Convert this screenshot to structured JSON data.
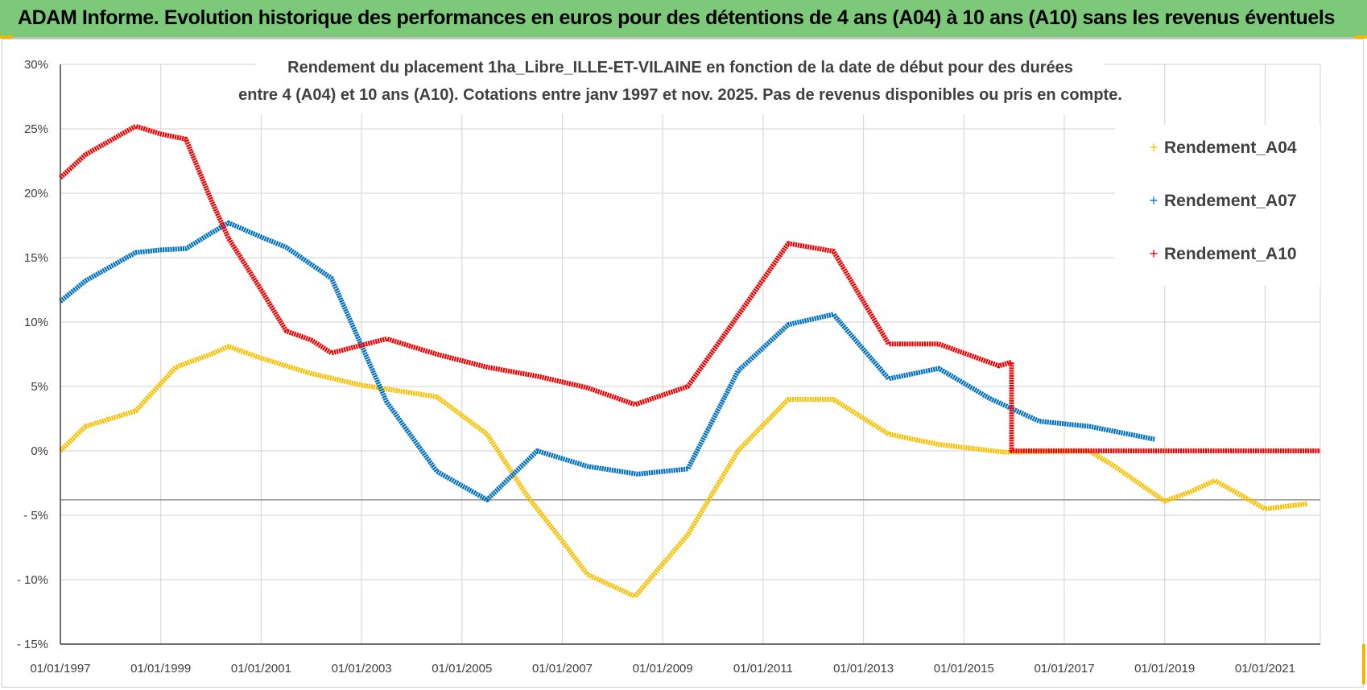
{
  "header": {
    "title": "ADAM Informe. Evolution historique des performances en euros pour des détentions de 4 ans (A04) à 10 ans (A10) sans les revenus éventuels"
  },
  "colors": {
    "banner": "#7dc97a",
    "A04": "#f9c000",
    "A07": "#0070c0",
    "A10": "#ee0000",
    "grid": "#d9d9d9"
  },
  "chart_data": {
    "type": "line",
    "title_lines": [
      "Rendement du placement 1ha_Libre_ILLE-ET-VILAINE en fonction de la date de début pour des durées",
      "entre 4 (A04) et 10 ans (A10). Cotations entre janv 1997 et nov. 2025. Pas de revenus disponibles ou pris en compte."
    ],
    "x_tick_labels": [
      "01/01/1997",
      "01/01/1999",
      "01/01/2001",
      "01/01/2003",
      "01/01/2005",
      "01/01/2007",
      "01/01/2009",
      "01/01/2011",
      "01/01/2013",
      "01/01/2015",
      "01/01/2017",
      "01/01/2019",
      "01/01/2021"
    ],
    "y_tick_labels": [
      "30%",
      "25%",
      "20%",
      "15%",
      "10%",
      "5%",
      "0%",
      "- 5%",
      "- 10%",
      "- 15%"
    ],
    "xlim": [
      1997.0,
      2022.1
    ],
    "ylim": [
      -15,
      30
    ],
    "reference_line": -3.8,
    "xlabel": "",
    "ylabel": "",
    "legend_position": "top-right",
    "series": [
      {
        "name": "Rendement_A04",
        "points": [
          [
            1997.0,
            0.0
          ],
          [
            1997.5,
            1.9
          ],
          [
            1998.5,
            3.1
          ],
          [
            1999.3,
            6.5
          ],
          [
            2000.0,
            7.5
          ],
          [
            2000.35,
            8.1
          ],
          [
            2001.0,
            7.2
          ],
          [
            2002.0,
            6.0
          ],
          [
            2003.0,
            5.1
          ],
          [
            2004.0,
            4.5
          ],
          [
            2004.5,
            4.2
          ],
          [
            2005.5,
            1.3
          ],
          [
            2006.3,
            -3.5
          ],
          [
            2007.0,
            -7.0
          ],
          [
            2007.5,
            -9.6
          ],
          [
            2008.45,
            -11.3
          ],
          [
            2009.5,
            -6.5
          ],
          [
            2010.5,
            0.0
          ],
          [
            2011.5,
            4.0
          ],
          [
            2012.4,
            4.0
          ],
          [
            2013.5,
            1.3
          ],
          [
            2014.5,
            0.5
          ],
          [
            2015.8,
            -0.1
          ],
          [
            2017.5,
            0.0
          ],
          [
            2018.0,
            -1.2
          ],
          [
            2019.0,
            -3.9
          ],
          [
            2019.5,
            -3.2
          ],
          [
            2020.0,
            -2.3
          ],
          [
            2021.0,
            -4.5
          ],
          [
            2021.85,
            -4.1
          ]
        ]
      },
      {
        "name": "Rendement_A07",
        "points": [
          [
            1997.0,
            11.6
          ],
          [
            1997.5,
            13.2
          ],
          [
            1998.5,
            15.4
          ],
          [
            1999.0,
            15.6
          ],
          [
            1999.5,
            15.7
          ],
          [
            2000.0,
            16.9
          ],
          [
            2000.35,
            17.7
          ],
          [
            2001.0,
            16.6
          ],
          [
            2001.5,
            15.8
          ],
          [
            2002.4,
            13.4
          ],
          [
            2003.5,
            3.8
          ],
          [
            2004.5,
            -1.6
          ],
          [
            2005.5,
            -3.8
          ],
          [
            2006.5,
            0.0
          ],
          [
            2007.5,
            -1.2
          ],
          [
            2008.5,
            -1.8
          ],
          [
            2009.5,
            -1.4
          ],
          [
            2010.5,
            6.2
          ],
          [
            2011.5,
            9.8
          ],
          [
            2012.4,
            10.6
          ],
          [
            2013.5,
            5.6
          ],
          [
            2014.5,
            6.4
          ],
          [
            2015.5,
            4.1
          ],
          [
            2016.5,
            2.3
          ],
          [
            2017.5,
            1.9
          ],
          [
            2018.8,
            0.9
          ]
        ]
      },
      {
        "name": "Rendement_A10",
        "points": [
          [
            1997.0,
            21.2
          ],
          [
            1997.5,
            23.0
          ],
          [
            1998.5,
            25.2
          ],
          [
            1999.0,
            24.6
          ],
          [
            1999.5,
            24.2
          ],
          [
            2000.0,
            19.5
          ],
          [
            2000.35,
            16.5
          ],
          [
            2001.0,
            12.5
          ],
          [
            2001.5,
            9.3
          ],
          [
            2002.0,
            8.6
          ],
          [
            2002.4,
            7.6
          ],
          [
            2003.5,
            8.7
          ],
          [
            2004.5,
            7.5
          ],
          [
            2005.5,
            6.5
          ],
          [
            2006.5,
            5.8
          ],
          [
            2007.5,
            4.9
          ],
          [
            2008.45,
            3.6
          ],
          [
            2009.5,
            5.0
          ],
          [
            2010.5,
            10.5
          ],
          [
            2011.5,
            16.1
          ],
          [
            2012.4,
            15.5
          ],
          [
            2013.5,
            8.3
          ],
          [
            2014.5,
            8.3
          ],
          [
            2015.7,
            6.6
          ],
          [
            2015.95,
            6.9
          ],
          [
            2015.95,
            0.0
          ],
          [
            2022.1,
            0.0
          ]
        ]
      }
    ]
  }
}
